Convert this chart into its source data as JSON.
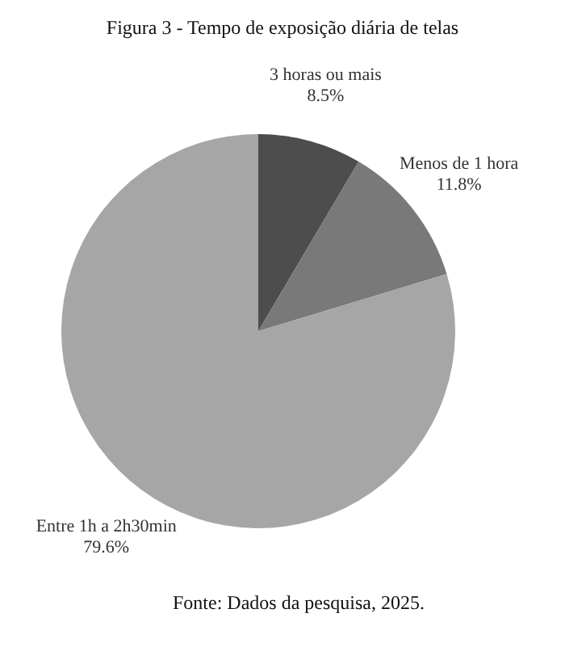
{
  "chart_data": {
    "type": "pie",
    "title": "Figura 3 - Tempo de exposição diária de telas",
    "categories": [
      "3 horas ou mais",
      "Menos de 1 hora",
      "Entre 1h a 2h30min"
    ],
    "values": [
      8.5,
      11.8,
      79.6
    ],
    "value_labels": [
      "8.5%",
      "11.8%",
      "79.6%"
    ],
    "colors": [
      "#4d4d4d",
      "#797979",
      "#a6a6a6"
    ],
    "legend": false,
    "annotations": [
      "Fonte: Dados da pesquisa, 2025."
    ]
  }
}
